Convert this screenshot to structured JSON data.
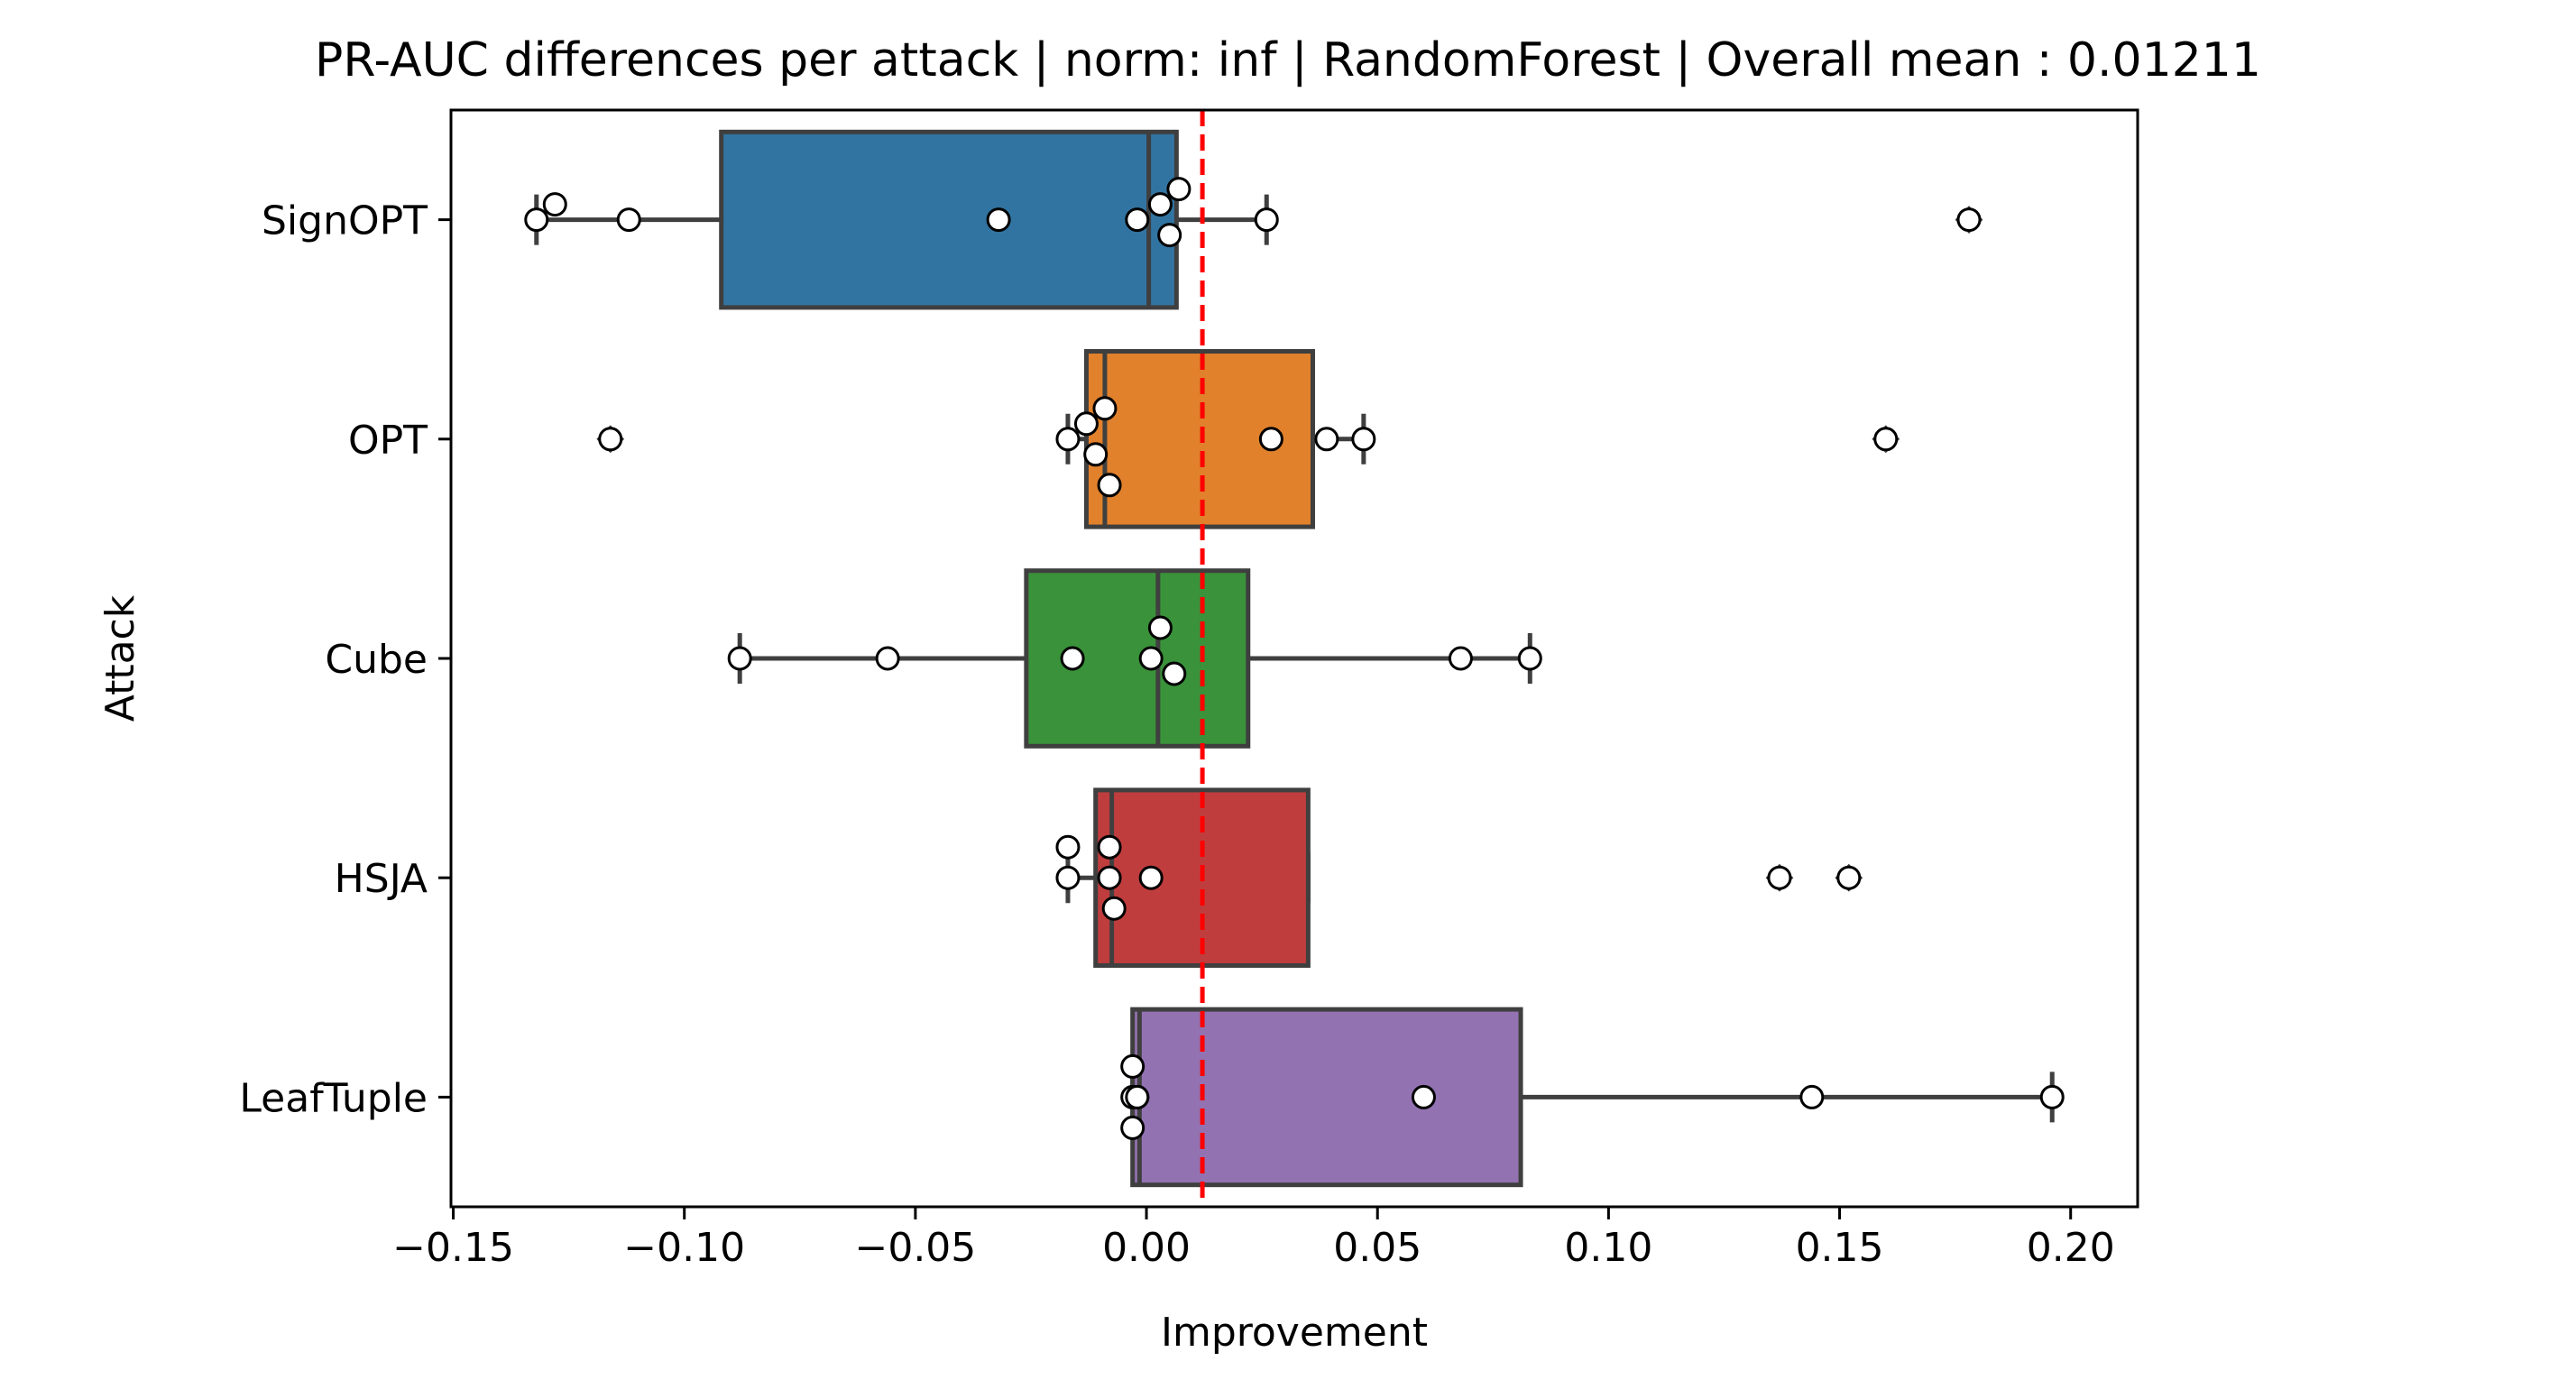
{
  "chart_data": {
    "type": "box",
    "orientation": "horizontal",
    "title": "PR-AUC differences per attack | norm: inf | RandomForest | Overall mean : 0.01211",
    "xlabel": "Improvement",
    "ylabel": "Attack",
    "xlim": [
      -0.1505,
      0.2145
    ],
    "xticks": [
      -0.15,
      -0.1,
      -0.05,
      0.0,
      0.05,
      0.1,
      0.15,
      0.2
    ],
    "xtick_labels": [
      "−0.15",
      "−0.10",
      "−0.05",
      "0.00",
      "0.05",
      "0.10",
      "0.15",
      "0.20"
    ],
    "grid": false,
    "mean_line": {
      "value": 0.01211,
      "color": "#ff0000",
      "style": "dashed"
    },
    "categories": [
      "SignOPT",
      "OPT",
      "Cube",
      "HSJA",
      "LeafTuple"
    ],
    "boxes": [
      {
        "name": "SignOPT",
        "color": "#3274a1",
        "q1": -0.092,
        "median": 0.0005,
        "q3": 0.0065,
        "whisker_low": -0.132,
        "whisker_high": 0.026,
        "outliers": [
          0.178
        ],
        "points": [
          -0.132,
          -0.128,
          -0.112,
          -0.032,
          -0.002,
          0.003,
          0.005,
          0.007,
          0.026,
          0.178
        ]
      },
      {
        "name": "OPT",
        "color": "#e1812c",
        "q1": -0.013,
        "median": -0.009,
        "q3": 0.036,
        "whisker_low": -0.017,
        "whisker_high": 0.047,
        "outliers": [
          -0.116,
          0.16
        ],
        "points": [
          -0.116,
          -0.017,
          -0.013,
          -0.011,
          -0.009,
          -0.008,
          0.027,
          0.039,
          0.047,
          0.16
        ]
      },
      {
        "name": "Cube",
        "color": "#3a923a",
        "q1": -0.026,
        "median": 0.0025,
        "q3": 0.022,
        "whisker_low": -0.088,
        "whisker_high": 0.083,
        "outliers": [],
        "points": [
          -0.088,
          -0.056,
          -0.016,
          0.001,
          0.003,
          0.006,
          0.068,
          0.083
        ]
      },
      {
        "name": "HSJA",
        "color": "#c03d3e",
        "q1": -0.011,
        "median": -0.0075,
        "q3": 0.035,
        "whisker_low": -0.017,
        "whisker_high": 0.035,
        "outliers": [
          0.137,
          0.152
        ],
        "points": [
          -0.017,
          -0.017,
          -0.008,
          -0.008,
          -0.007,
          0.001,
          0.137,
          0.152
        ]
      },
      {
        "name": "LeafTuple",
        "color": "#9372b2",
        "q1": -0.003,
        "median": -0.0015,
        "q3": 0.081,
        "whisker_low": -0.003,
        "whisker_high": 0.196,
        "outliers": [],
        "points": [
          -0.002,
          -0.003,
          -0.003,
          -0.003,
          -0.002,
          0.06,
          0.144,
          0.196
        ]
      }
    ]
  }
}
